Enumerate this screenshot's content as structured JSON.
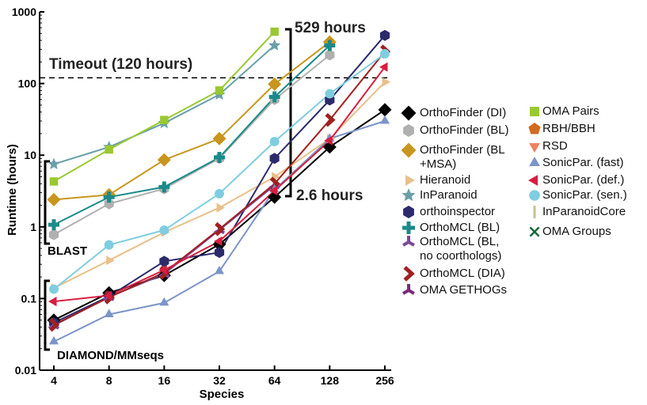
{
  "chart_data": {
    "type": "line",
    "x_label": "Species",
    "y_label": "Runtime (hours)",
    "categories": [
      "4",
      "8",
      "16",
      "32",
      "64",
      "128",
      "256"
    ],
    "log_y": true,
    "ylim": [
      0.01,
      1000
    ],
    "yticks": [
      0.01,
      0.1,
      1,
      10,
      100,
      1000
    ],
    "annotations": {
      "timeout": "Timeout (120 hours)",
      "timeout_value": 120,
      "max": "529 hours",
      "min": "2.6 hours",
      "blast": "BLAST",
      "diamond": "DIAMOND/MMseqs"
    },
    "series": [
      {
        "name": "OrthoFinder (DI)",
        "color": "#000000",
        "marker": "diamond",
        "values": [
          0.05,
          0.12,
          0.21,
          0.57,
          2.6,
          13,
          43
        ]
      },
      {
        "name": "OrthoFinder (BL)",
        "color": "#b0b0b0",
        "marker": "hexagon",
        "values": [
          0.78,
          2.1,
          3.4,
          9,
          60,
          250,
          null
        ]
      },
      {
        "name": "OrthoFinder (BL\n+MSA)",
        "color": "#c8961e",
        "marker": "diamond",
        "values": [
          2.4,
          2.8,
          8.6,
          17,
          98,
          380,
          null
        ]
      },
      {
        "name": "Hieranoid",
        "color": "#e8c08a",
        "marker": "tri-right",
        "values": [
          0.14,
          0.34,
          0.84,
          1.85,
          5,
          17,
          105
        ]
      },
      {
        "name": "InParanoid",
        "color": "#6a9fa8",
        "marker": "star",
        "values": [
          7.5,
          13,
          28,
          70,
          340,
          null,
          null
        ]
      },
      {
        "name": "orthoinspector",
        "color": "#2b2a6b",
        "marker": "hexagon",
        "values": [
          0.046,
          0.107,
          0.33,
          0.44,
          9,
          59,
          470
        ]
      },
      {
        "name": "OrthoMCL (BL)",
        "color": "#1a8a8a",
        "marker": "plus",
        "values": [
          1.07,
          2.6,
          3.6,
          9.3,
          65,
          340,
          null
        ]
      },
      {
        "name": "OrthoMCL (BL,\nno coorthologs)",
        "color": "#7a4a9a",
        "marker": "tri",
        "values": [
          0.042,
          0.105,
          0.22,
          0.9,
          3.8,
          null,
          null
        ]
      },
      {
        "name": "OrthoMCL (DIA)",
        "color": "#a02020",
        "marker": "chevron",
        "values": [
          0.043,
          0.104,
          0.23,
          0.93,
          4,
          31,
          280
        ]
      },
      {
        "name": "OMA GETHOGs",
        "color": "#7a2a7a",
        "marker": "tri",
        "values": [
          null,
          null,
          null,
          null,
          null,
          null,
          null
        ]
      },
      {
        "name": "OMA Pairs",
        "color": "#9ac832",
        "marker": "square",
        "values": [
          4.3,
          12,
          31,
          80,
          529,
          null,
          null
        ]
      },
      {
        "name": "RBH/BBH",
        "color": "#d2691e",
        "marker": "pentagon",
        "values": [
          null,
          null,
          null,
          null,
          null,
          null,
          null
        ]
      },
      {
        "name": "RSD",
        "color": "#f08060",
        "marker": "tri-down",
        "values": [
          null,
          null,
          null,
          null,
          null,
          null,
          null
        ]
      },
      {
        "name": "SonicPar. (fast)",
        "color": "#7c94c8",
        "marker": "tri-up",
        "values": [
          0.025,
          0.06,
          0.087,
          0.24,
          3.3,
          17,
          30
        ]
      },
      {
        "name": "SonicPar. (def.)",
        "color": "#d81e40",
        "marker": "tri-left",
        "values": [
          0.091,
          0.11,
          0.25,
          0.63,
          3.2,
          16,
          170
        ]
      },
      {
        "name": "SonicPar. (sen.)",
        "color": "#7fcde0",
        "marker": "circle",
        "values": [
          0.135,
          0.56,
          0.9,
          2.9,
          15.5,
          72,
          260
        ]
      },
      {
        "name": "InParanoidCore",
        "color": "#c8c090",
        "marker": "bar",
        "values": [
          null,
          null,
          null,
          null,
          null,
          null,
          null
        ]
      },
      {
        "name": "OMA Groups",
        "color": "#1a6a3a",
        "marker": "x",
        "values": [
          null,
          null,
          null,
          null,
          null,
          null,
          null
        ]
      }
    ]
  }
}
